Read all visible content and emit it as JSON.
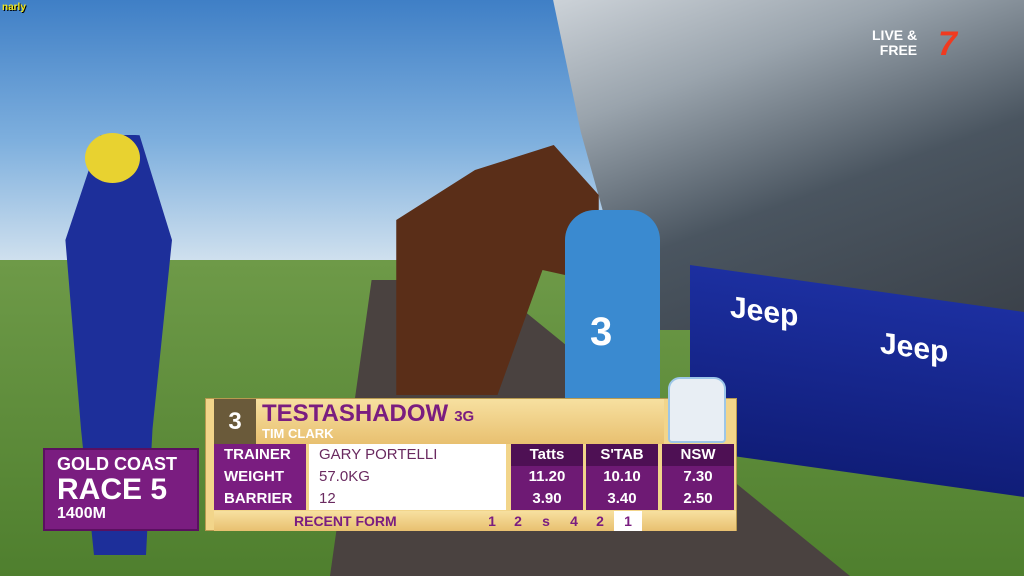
{
  "network_tag": "narly",
  "live_badge": {
    "line1": "LIVE &",
    "line2": "FREE",
    "logo": "7"
  },
  "banner_text": [
    "Jeep",
    "Jeep"
  ],
  "saddlecloth": "3",
  "race": {
    "venue": "GOLD COAST",
    "race": "RACE 5",
    "distance": "1400M"
  },
  "runner": {
    "number": "3",
    "name": "TESTASHADOW",
    "age_sex": "3G",
    "jockey": "TIM CLARK"
  },
  "details": [
    {
      "label": "TRAINER",
      "value": "GARY PORTELLI"
    },
    {
      "label": "WEIGHT",
      "value": "57.0KG"
    },
    {
      "label": "BARRIER",
      "value": "12"
    }
  ],
  "odds": {
    "headers": [
      "Tatts",
      "S'TAB",
      "NSW"
    ],
    "rows": [
      [
        "11.20",
        "10.10",
        "7.30"
      ],
      [
        "3.90",
        "3.40",
        "2.50"
      ]
    ]
  },
  "recent_form": {
    "label": "RECENT FORM",
    "items": [
      "1",
      "2",
      "s",
      "4",
      "2",
      "1"
    ],
    "current_index": 5
  },
  "colors": {
    "purple": "#7a1d80",
    "gold": "#f2d58a",
    "seven_red": "#f03a20"
  }
}
